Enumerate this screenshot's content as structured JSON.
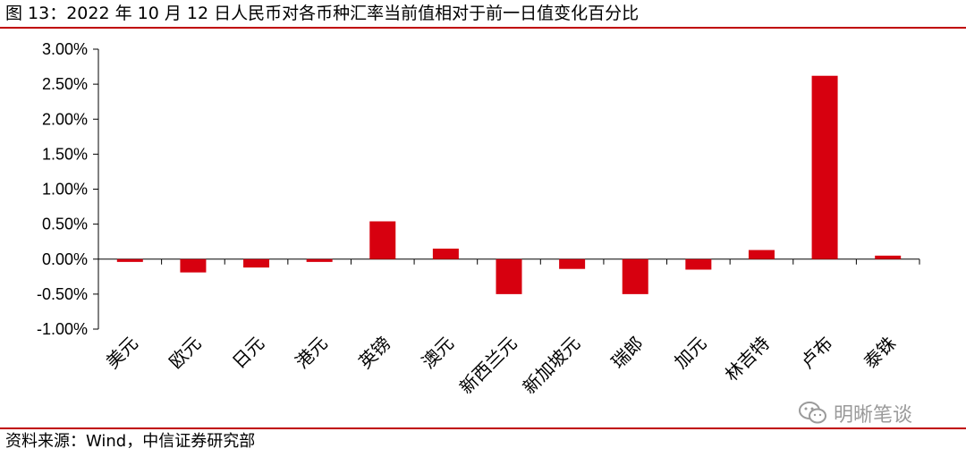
{
  "title": "图 13：2022 年 10 月 12 日人民币对各币种汇率当前值相对于前一日值变化百分比",
  "source": "资料来源：Wind，中信证券研究部",
  "watermark": {
    "text": "明晰笔谈",
    "icon": "wechat-icon"
  },
  "colors": {
    "bar": "#d7000f",
    "rule": "#c00000",
    "axis": "#000000"
  },
  "chart_data": {
    "type": "bar",
    "categories": [
      "美元",
      "欧元",
      "日元",
      "港元",
      "英镑",
      "澳元",
      "新西兰元",
      "新加坡元",
      "瑞郎",
      "加元",
      "林吉特",
      "卢布",
      "泰铢"
    ],
    "values": [
      -0.04,
      -0.19,
      -0.12,
      -0.04,
      0.54,
      0.15,
      -0.5,
      -0.14,
      -0.5,
      -0.15,
      0.13,
      2.62,
      0.05
    ],
    "ylim": [
      -1.0,
      3.0
    ],
    "yticks": [
      "-1.00%",
      "-0.50%",
      "0.00%",
      "0.50%",
      "1.00%",
      "1.50%",
      "2.00%",
      "2.50%",
      "3.00%"
    ],
    "ytick_values": [
      -1.0,
      -0.5,
      0.0,
      0.5,
      1.0,
      1.5,
      2.0,
      2.5,
      3.0
    ],
    "grid": false,
    "legend": "none"
  }
}
